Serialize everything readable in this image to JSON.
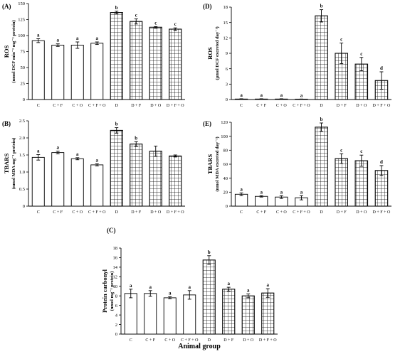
{
  "x_axis_title": "Animal group",
  "colors": {
    "bar_fill": "#ffffff",
    "stroke": "#000000",
    "hatch": "#000000"
  },
  "chart_data": [
    {
      "panel": "(A)",
      "type": "bar",
      "categories": [
        "C",
        "C + F",
        "C + O",
        "C + F + O",
        "D",
        "D + F",
        "D + O",
        "D + F + O"
      ],
      "hatched": [
        false,
        false,
        false,
        false,
        true,
        true,
        true,
        true
      ],
      "values": [
        92,
        85,
        85,
        88,
        136,
        122,
        113,
        110
      ],
      "errors": [
        3,
        2,
        5,
        2,
        2,
        4,
        1,
        2
      ],
      "letters": [
        "a",
        "a",
        "a",
        "a",
        "b",
        "c",
        "c",
        "c"
      ],
      "ylabel": "ROS",
      "yunit": "(nmol DCF min⁻¹ mg⁻¹ protein)",
      "ylim": [
        0,
        150
      ],
      "yticks": [
        0,
        25,
        50,
        75,
        100,
        125,
        150
      ]
    },
    {
      "panel": "(D)",
      "type": "bar",
      "categories": [
        "C",
        "C + F",
        "C + O",
        "C + F + O",
        "D",
        "D + F",
        "D + O",
        "D + F + O"
      ],
      "hatched": [
        false,
        false,
        false,
        false,
        true,
        true,
        true,
        true
      ],
      "values": [
        0.1,
        0.1,
        0.1,
        0.05,
        16.3,
        9.0,
        6.9,
        3.7
      ],
      "errors": [
        0.05,
        0.05,
        0.05,
        0.05,
        1.2,
        2.0,
        1.3,
        1.7
      ],
      "letters": [
        "a",
        "a",
        "a",
        "a",
        "b",
        "c",
        "c",
        "d"
      ],
      "ylabel": "ROS",
      "yunit": "(μmol DCF excreted day⁻¹)",
      "ylim": [
        0,
        18
      ],
      "yticks": [
        0,
        3,
        6,
        9,
        12,
        15,
        18
      ]
    },
    {
      "panel": "(B)",
      "type": "bar",
      "categories": [
        "C",
        "C + F",
        "C + O",
        "C + F + O",
        "D",
        "D + F",
        "D + O",
        "D + F + O"
      ],
      "hatched": [
        false,
        false,
        false,
        false,
        true,
        true,
        true,
        true
      ],
      "values": [
        1.43,
        1.57,
        1.39,
        1.21,
        2.22,
        1.82,
        1.61,
        1.47
      ],
      "errors": [
        0.08,
        0.04,
        0.03,
        0.03,
        0.08,
        0.07,
        0.15,
        0.03
      ],
      "letters": [
        "a",
        "a",
        "a",
        "a",
        "b",
        "b",
        "",
        ""
      ],
      "ylabel": "TBARS",
      "yunit": "(nmol MDA mg⁻¹ protein)",
      "ylim": [
        0,
        2.5
      ],
      "yticks": [
        "0",
        "0.5",
        "1.0",
        "1.5",
        "2.0",
        "2.5"
      ]
    },
    {
      "panel": "(E)",
      "type": "bar",
      "categories": [
        "C",
        "C + F",
        "C + O",
        "C + F + O",
        "D",
        "D + F",
        "D + O",
        "D + F + O"
      ],
      "hatched": [
        false,
        false,
        false,
        false,
        true,
        true,
        true,
        true
      ],
      "values": [
        17,
        14,
        13,
        12,
        113,
        68,
        65,
        51
      ],
      "errors": [
        2,
        1,
        2,
        3,
        6,
        7,
        8,
        7
      ],
      "letters": [
        "a",
        "a",
        "a",
        "a",
        "b",
        "c",
        "c",
        "d"
      ],
      "ylabel": "TBARS",
      "yunit": "(nmol MDA excreted day⁻¹)",
      "ylim": [
        0,
        120
      ],
      "yticks": [
        0,
        20,
        40,
        60,
        80,
        100,
        120
      ]
    },
    {
      "panel": "(C)",
      "type": "bar",
      "categories": [
        "C",
        "C + F",
        "C + O",
        "C + F + O",
        "D",
        "D + F",
        "D + O",
        "D + F + O"
      ],
      "hatched": [
        false,
        false,
        false,
        false,
        true,
        true,
        true,
        true
      ],
      "values": [
        8.5,
        8.5,
        7.6,
        8.2,
        15.5,
        9.4,
        8.0,
        8.6
      ],
      "errors": [
        0.9,
        0.6,
        0.2,
        0.9,
        0.9,
        0.4,
        0.4,
        0.9
      ],
      "letters": [
        "a",
        "a",
        "a",
        "a",
        "b",
        "a",
        "a",
        "a"
      ],
      "ylabel": "Protein carbonyl",
      "yunit": "(nmol mg⁻¹ protein)",
      "ylim": [
        0,
        18
      ],
      "yticks": [
        0,
        2,
        4,
        6,
        8,
        10,
        12,
        14,
        16,
        18
      ]
    }
  ]
}
